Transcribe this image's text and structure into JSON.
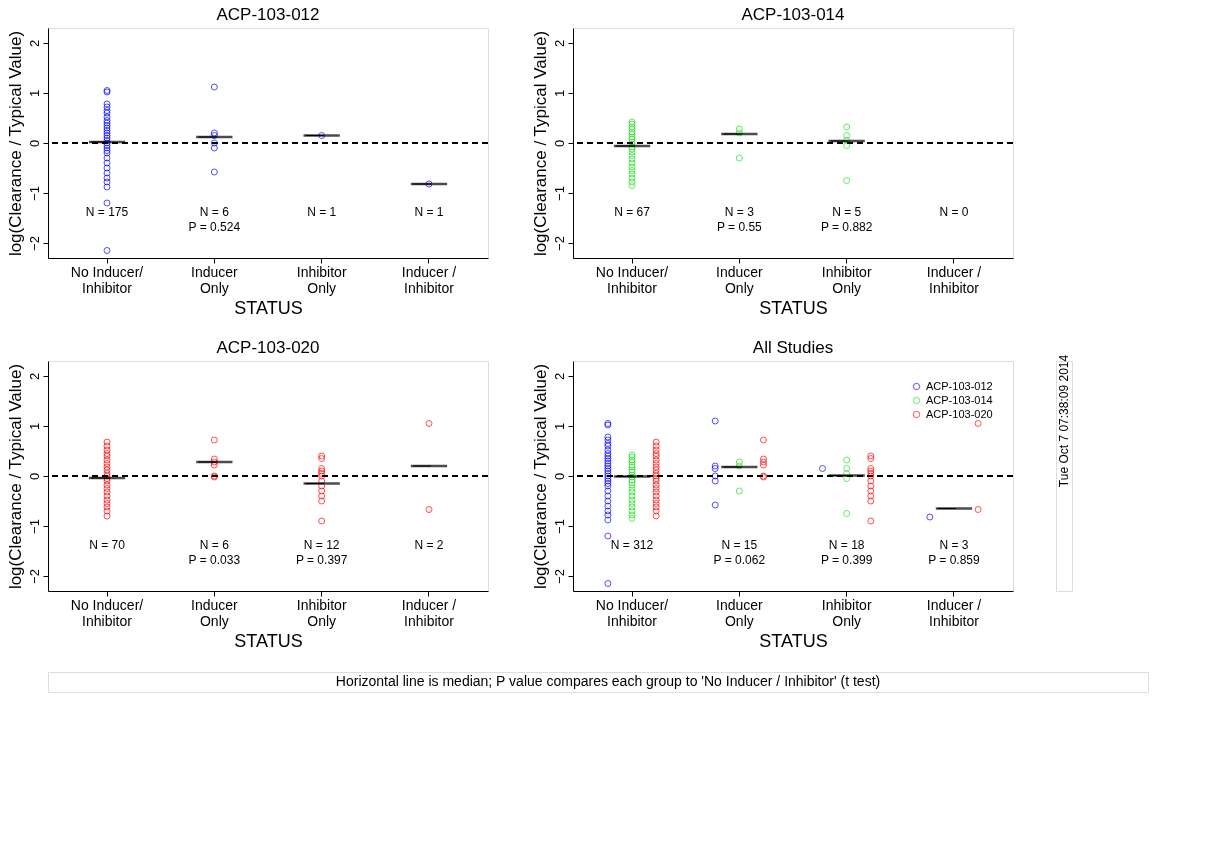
{
  "chart_data": [
    {
      "type": "scatter",
      "title": "ACP-103-012",
      "xlabel": "STATUS",
      "ylabel": "log(Clearance / Typical Value)",
      "categories": [
        "No Inducer/\nInhibitor",
        "Inducer\nOnly",
        "Inhibitor\nOnly",
        "Inducer /\nInhibitor"
      ],
      "ylim": [
        -2.3,
        2.3
      ],
      "yticks": [
        -2,
        -1,
        0,
        1,
        2
      ],
      "grid": false,
      "marker": "circle",
      "series": [
        {
          "color": "#0000ff",
          "x": [
            "No Inducer/\nInhibitor",
            "No Inducer/\nInhibitor",
            "No Inducer/\nInhibitor",
            "No Inducer/\nInhibitor",
            "No Inducer/\nInhibitor",
            "No Inducer/\nInhibitor",
            "No Inducer/\nInhibitor",
            "No Inducer/\nInhibitor",
            "No Inducer/\nInhibitor",
            "No Inducer/\nInhibitor",
            "No Inducer/\nInhibitor",
            "No Inducer/\nInhibitor",
            "No Inducer/\nInhibitor",
            "No Inducer/\nInhibitor",
            "No Inducer/\nInhibitor",
            "No Inducer/\nInhibitor",
            "No Inducer/\nInhibitor",
            "No Inducer/\nInhibitor",
            "No Inducer/\nInhibitor",
            "No Inducer/\nInhibitor",
            "No Inducer/\nInhibitor",
            "No Inducer/\nInhibitor",
            "No Inducer/\nInhibitor",
            "No Inducer/\nInhibitor",
            "No Inducer/\nInhibitor",
            "No Inducer/\nInhibitor",
            "No Inducer/\nInhibitor",
            "No Inducer/\nInhibitor",
            "No Inducer/\nInhibitor",
            "No Inducer/\nInhibitor",
            "Inducer\nOnly",
            "Inducer\nOnly",
            "Inducer\nOnly",
            "Inducer\nOnly",
            "Inducer\nOnly",
            "Inducer\nOnly",
            "Inhibitor\nOnly",
            "Inducer /\nInhibitor"
          ],
          "values": [
            1.05,
            1.02,
            0.78,
            0.72,
            0.65,
            0.6,
            0.52,
            0.45,
            0.4,
            0.35,
            0.3,
            0.25,
            0.2,
            0.15,
            0.1,
            0.05,
            0,
            -0.05,
            -0.1,
            -0.15,
            -0.2,
            -0.3,
            -0.4,
            -0.5,
            -0.6,
            -0.7,
            -0.78,
            -0.88,
            -1.2,
            -2.15,
            1.12,
            0.2,
            0.15,
            0,
            -0.1,
            -0.58,
            0.15,
            -0.82
          ]
        },
        {
          "type": "box",
          "color": "#000000",
          "x": [
            "No Inducer/\nInhibitor",
            "Inducer\nOnly",
            "Inhibitor\nOnly",
            "Inducer /\nInhibitor"
          ],
          "boxes": [
            {
              "low": 0.02,
              "q1": 0.02,
              "median": 0.02,
              "q3": 0.02,
              "high": 0.02
            },
            {
              "low": 0.12,
              "q1": 0.12,
              "median": 0.12,
              "q3": 0.12,
              "high": 0.12
            },
            {
              "low": 0.15,
              "q1": 0.15,
              "median": 0.15,
              "q3": 0.15,
              "high": 0.15
            },
            {
              "low": -0.82,
              "q1": -0.82,
              "median": -0.82,
              "q3": -0.82,
              "high": -0.82
            }
          ]
        }
      ],
      "ref_lines": [
        {
          "axis": "y",
          "value": 0,
          "color": "#000000",
          "line_style": "dashed"
        }
      ],
      "annotations": [
        "N = 175",
        "N = 6\nP = 0.524",
        "N = 1",
        "N = 1"
      ]
    },
    {
      "type": "scatter",
      "title": "ACP-103-014",
      "xlabel": "STATUS",
      "ylabel": "log(Clearance / Typical Value)",
      "categories": [
        "No Inducer/\nInhibitor",
        "Inducer\nOnly",
        "Inhibitor\nOnly",
        "Inducer /\nInhibitor"
      ],
      "ylim": [
        -2.3,
        2.3
      ],
      "yticks": [
        -2,
        -1,
        0,
        1,
        2
      ],
      "grid": false,
      "marker": "circle",
      "series": [
        {
          "color": "#22dd22",
          "x": [
            "No Inducer/\nInhibitor",
            "No Inducer/\nInhibitor",
            "No Inducer/\nInhibitor",
            "No Inducer/\nInhibitor",
            "No Inducer/\nInhibitor",
            "No Inducer/\nInhibitor",
            "No Inducer/\nInhibitor",
            "No Inducer/\nInhibitor",
            "No Inducer/\nInhibitor",
            "No Inducer/\nInhibitor",
            "No Inducer/\nInhibitor",
            "No Inducer/\nInhibitor",
            "No Inducer/\nInhibitor",
            "No Inducer/\nInhibitor",
            "No Inducer/\nInhibitor",
            "No Inducer/\nInhibitor",
            "No Inducer/\nInhibitor",
            "No Inducer/\nInhibitor",
            "No Inducer/\nInhibitor",
            "No Inducer/\nInhibitor",
            "No Inducer/\nInhibitor",
            "No Inducer/\nInhibitor",
            "Inducer\nOnly",
            "Inducer\nOnly",
            "Inducer\nOnly",
            "Inhibitor\nOnly",
            "Inhibitor\nOnly",
            "Inhibitor\nOnly",
            "Inhibitor\nOnly",
            "Inhibitor\nOnly"
          ],
          "values": [
            0.42,
            0.38,
            0.32,
            0.28,
            0.22,
            0.18,
            0.12,
            0.08,
            0.02,
            -0.02,
            -0.08,
            -0.12,
            -0.18,
            -0.25,
            -0.32,
            -0.4,
            -0.48,
            -0.55,
            -0.62,
            -0.7,
            -0.78,
            -0.85,
            0.28,
            0.2,
            -0.3,
            0.32,
            0.15,
            0.05,
            -0.05,
            -0.75
          ]
        },
        {
          "type": "box",
          "color": "#000000",
          "x": [
            "No Inducer/\nInhibitor",
            "Inducer\nOnly",
            "Inhibitor\nOnly"
          ],
          "boxes": [
            {
              "low": -0.06,
              "q1": -0.06,
              "median": -0.06,
              "q3": -0.06,
              "high": -0.06
            },
            {
              "low": 0.18,
              "q1": 0.18,
              "median": 0.18,
              "q3": 0.18,
              "high": 0.18
            },
            {
              "low": 0.04,
              "q1": 0.04,
              "median": 0.04,
              "q3": 0.04,
              "high": 0.04
            }
          ]
        }
      ],
      "ref_lines": [
        {
          "axis": "y",
          "value": 0,
          "color": "#000000",
          "line_style": "dashed"
        }
      ],
      "annotations": [
        "N = 67",
        "N = 3\nP = 0.55",
        "N = 5\nP = 0.882",
        "N = 0"
      ]
    },
    {
      "type": "scatter",
      "title": "ACP-103-020",
      "xlabel": "STATUS",
      "ylabel": "log(Clearance / Typical Value)",
      "categories": [
        "No Inducer/\nInhibitor",
        "Inducer\nOnly",
        "Inhibitor\nOnly",
        "Inducer /\nInhibitor"
      ],
      "ylim": [
        -2.3,
        2.3
      ],
      "yticks": [
        -2,
        -1,
        0,
        1,
        2
      ],
      "grid": false,
      "marker": "circle",
      "series": [
        {
          "color": "#ff0000",
          "x": [
            "No Inducer/\nInhibitor",
            "No Inducer/\nInhibitor",
            "No Inducer/\nInhibitor",
            "No Inducer/\nInhibitor",
            "No Inducer/\nInhibitor",
            "No Inducer/\nInhibitor",
            "No Inducer/\nInhibitor",
            "No Inducer/\nInhibitor",
            "No Inducer/\nInhibitor",
            "No Inducer/\nInhibitor",
            "No Inducer/\nInhibitor",
            "No Inducer/\nInhibitor",
            "No Inducer/\nInhibitor",
            "No Inducer/\nInhibitor",
            "No Inducer/\nInhibitor",
            "No Inducer/\nInhibitor",
            "No Inducer/\nInhibitor",
            "No Inducer/\nInhibitor",
            "No Inducer/\nInhibitor",
            "No Inducer/\nInhibitor",
            "No Inducer/\nInhibitor",
            "No Inducer/\nInhibitor",
            "Inducer\nOnly",
            "Inducer\nOnly",
            "Inducer\nOnly",
            "Inducer\nOnly",
            "Inducer\nOnly",
            "Inducer\nOnly",
            "Inhibitor\nOnly",
            "Inhibitor\nOnly",
            "Inhibitor\nOnly",
            "Inhibitor\nOnly",
            "Inhibitor\nOnly",
            "Inhibitor\nOnly",
            "Inhibitor\nOnly",
            "Inhibitor\nOnly",
            "Inhibitor\nOnly",
            "Inhibitor\nOnly",
            "Inhibitor\nOnly",
            "Inhibitor\nOnly",
            "Inducer /\nInhibitor",
            "Inducer /\nInhibitor"
          ],
          "values": [
            0.68,
            0.6,
            0.52,
            0.45,
            0.4,
            0.32,
            0.25,
            0.18,
            0.12,
            0.05,
            0,
            -0.05,
            -0.1,
            -0.18,
            -0.25,
            -0.32,
            -0.4,
            -0.48,
            -0.55,
            -0.62,
            -0.7,
            -0.8,
            0.72,
            0.34,
            0.28,
            0.22,
            0,
            -0.02,
            0.4,
            0.35,
            0.15,
            0.1,
            0.05,
            0,
            -0.1,
            -0.2,
            -0.3,
            -0.4,
            -0.5,
            -0.9,
            1.05,
            -0.67
          ]
        },
        {
          "type": "box",
          "color": "#000000",
          "x": [
            "No Inducer/\nInhibitor",
            "Inducer\nOnly",
            "Inhibitor\nOnly",
            "Inducer /\nInhibitor"
          ],
          "boxes": [
            {
              "low": -0.04,
              "q1": -0.04,
              "median": -0.04,
              "q3": -0.04,
              "high": -0.04
            },
            {
              "low": 0.28,
              "q1": 0.28,
              "median": 0.28,
              "q3": 0.28,
              "high": 0.28
            },
            {
              "low": -0.15,
              "q1": -0.15,
              "median": -0.15,
              "q3": -0.15,
              "high": -0.15
            },
            {
              "low": 0.2,
              "q1": 0.2,
              "median": 0.2,
              "q3": 0.2,
              "high": 0.2
            }
          ]
        }
      ],
      "ref_lines": [
        {
          "axis": "y",
          "value": 0,
          "color": "#000000",
          "line_style": "dashed"
        }
      ],
      "annotations": [
        "N = 70",
        "N = 6\nP = 0.033",
        "N = 12\nP = 0.397",
        "N = 2"
      ]
    },
    {
      "type": "scatter",
      "title": "All Studies",
      "xlabel": "STATUS",
      "ylabel": "log(Clearance / Typical Value)",
      "categories": [
        "No Inducer/\nInhibitor",
        "Inducer\nOnly",
        "Inhibitor\nOnly",
        "Inducer /\nInhibitor"
      ],
      "ylim": [
        -2.3,
        2.3
      ],
      "yticks": [
        -2,
        -1,
        0,
        1,
        2
      ],
      "grid": false,
      "legend": "top right",
      "marker": "circle",
      "series": [
        {
          "name": "ACP-103-012",
          "color": "#0000ff",
          "x": [
            "No Inducer/\nInhibitor",
            "No Inducer/\nInhibitor",
            "No Inducer/\nInhibitor",
            "No Inducer/\nInhibitor",
            "No Inducer/\nInhibitor",
            "No Inducer/\nInhibitor",
            "No Inducer/\nInhibitor",
            "No Inducer/\nInhibitor",
            "No Inducer/\nInhibitor",
            "No Inducer/\nInhibitor",
            "No Inducer/\nInhibitor",
            "No Inducer/\nInhibitor",
            "No Inducer/\nInhibitor",
            "No Inducer/\nInhibitor",
            "No Inducer/\nInhibitor",
            "No Inducer/\nInhibitor",
            "No Inducer/\nInhibitor",
            "No Inducer/\nInhibitor",
            "No Inducer/\nInhibitor",
            "No Inducer/\nInhibitor",
            "No Inducer/\nInhibitor",
            "No Inducer/\nInhibitor",
            "No Inducer/\nInhibitor",
            "No Inducer/\nInhibitor",
            "No Inducer/\nInhibitor",
            "No Inducer/\nInhibitor",
            "No Inducer/\nInhibitor",
            "No Inducer/\nInhibitor",
            "No Inducer/\nInhibitor",
            "No Inducer/\nInhibitor",
            "Inducer\nOnly",
            "Inducer\nOnly",
            "Inducer\nOnly",
            "Inducer\nOnly",
            "Inducer\nOnly",
            "Inducer\nOnly",
            "Inhibitor\nOnly",
            "Inducer /\nInhibitor"
          ],
          "values": [
            1.05,
            1.02,
            0.78,
            0.72,
            0.65,
            0.6,
            0.52,
            0.45,
            0.4,
            0.35,
            0.3,
            0.25,
            0.2,
            0.15,
            0.1,
            0.05,
            0,
            -0.05,
            -0.1,
            -0.15,
            -0.2,
            -0.3,
            -0.4,
            -0.5,
            -0.6,
            -0.7,
            -0.78,
            -0.88,
            -1.2,
            -2.15,
            1.1,
            0.2,
            0.15,
            0,
            -0.1,
            -0.58,
            0.15,
            -0.82
          ]
        },
        {
          "name": "ACP-103-014",
          "color": "#22dd22",
          "x": [
            "No Inducer/\nInhibitor",
            "No Inducer/\nInhibitor",
            "No Inducer/\nInhibitor",
            "No Inducer/\nInhibitor",
            "No Inducer/\nInhibitor",
            "No Inducer/\nInhibitor",
            "No Inducer/\nInhibitor",
            "No Inducer/\nInhibitor",
            "No Inducer/\nInhibitor",
            "No Inducer/\nInhibitor",
            "No Inducer/\nInhibitor",
            "No Inducer/\nInhibitor",
            "No Inducer/\nInhibitor",
            "No Inducer/\nInhibitor",
            "No Inducer/\nInhibitor",
            "No Inducer/\nInhibitor",
            "No Inducer/\nInhibitor",
            "No Inducer/\nInhibitor",
            "No Inducer/\nInhibitor",
            "No Inducer/\nInhibitor",
            "No Inducer/\nInhibitor",
            "No Inducer/\nInhibitor",
            "Inducer\nOnly",
            "Inducer\nOnly",
            "Inducer\nOnly",
            "Inhibitor\nOnly",
            "Inhibitor\nOnly",
            "Inhibitor\nOnly",
            "Inhibitor\nOnly",
            "Inhibitor\nOnly"
          ],
          "values": [
            0.42,
            0.38,
            0.32,
            0.28,
            0.22,
            0.18,
            0.12,
            0.08,
            0.02,
            -0.02,
            -0.08,
            -0.12,
            -0.18,
            -0.25,
            -0.32,
            -0.4,
            -0.48,
            -0.55,
            -0.62,
            -0.7,
            -0.78,
            -0.85,
            0.28,
            0.2,
            -0.3,
            0.32,
            0.15,
            0.05,
            -0.05,
            -0.75
          ]
        },
        {
          "name": "ACP-103-020",
          "color": "#ff0000",
          "x": [
            "No Inducer/\nInhibitor",
            "No Inducer/\nInhibitor",
            "No Inducer/\nInhibitor",
            "No Inducer/\nInhibitor",
            "No Inducer/\nInhibitor",
            "No Inducer/\nInhibitor",
            "No Inducer/\nInhibitor",
            "No Inducer/\nInhibitor",
            "No Inducer/\nInhibitor",
            "No Inducer/\nInhibitor",
            "No Inducer/\nInhibitor",
            "No Inducer/\nInhibitor",
            "No Inducer/\nInhibitor",
            "No Inducer/\nInhibitor",
            "No Inducer/\nInhibitor",
            "No Inducer/\nInhibitor",
            "No Inducer/\nInhibitor",
            "No Inducer/\nInhibitor",
            "No Inducer/\nInhibitor",
            "No Inducer/\nInhibitor",
            "No Inducer/\nInhibitor",
            "No Inducer/\nInhibitor",
            "Inducer\nOnly",
            "Inducer\nOnly",
            "Inducer\nOnly",
            "Inducer\nOnly",
            "Inducer\nOnly",
            "Inducer\nOnly",
            "Inhibitor\nOnly",
            "Inhibitor\nOnly",
            "Inhibitor\nOnly",
            "Inhibitor\nOnly",
            "Inhibitor\nOnly",
            "Inhibitor\nOnly",
            "Inhibitor\nOnly",
            "Inhibitor\nOnly",
            "Inhibitor\nOnly",
            "Inhibitor\nOnly",
            "Inhibitor\nOnly",
            "Inhibitor\nOnly",
            "Inducer /\nInhibitor",
            "Inducer /\nInhibitor"
          ],
          "values": [
            0.68,
            0.6,
            0.52,
            0.45,
            0.4,
            0.32,
            0.25,
            0.18,
            0.12,
            0.05,
            0,
            -0.05,
            -0.1,
            -0.18,
            -0.25,
            -0.32,
            -0.4,
            -0.48,
            -0.55,
            -0.62,
            -0.7,
            -0.8,
            0.72,
            0.34,
            0.28,
            0.22,
            0,
            -0.02,
            0.4,
            0.35,
            0.15,
            0.1,
            0.05,
            0,
            -0.1,
            -0.2,
            -0.3,
            -0.4,
            -0.5,
            -0.9,
            1.05,
            -0.67
          ]
        },
        {
          "type": "box",
          "color": "#000000",
          "x": [
            "No Inducer/\nInhibitor",
            "Inducer\nOnly",
            "Inhibitor\nOnly",
            "Inducer /\nInhibitor"
          ],
          "boxes": [
            {
              "low": -0.01,
              "q1": -0.01,
              "median": -0.01,
              "q3": -0.01,
              "high": -0.01
            },
            {
              "low": 0.18,
              "q1": 0.18,
              "median": 0.18,
              "q3": 0.18,
              "high": 0.18
            },
            {
              "low": 0.01,
              "q1": 0.01,
              "median": 0.01,
              "q3": 0.01,
              "high": 0.01
            },
            {
              "low": -0.65,
              "q1": -0.65,
              "median": -0.65,
              "q3": -0.65,
              "high": -0.65
            }
          ]
        }
      ],
      "ref_lines": [
        {
          "axis": "y",
          "value": 0,
          "color": "#000000",
          "line_style": "dashed"
        }
      ],
      "annotations": [
        "Tue Oct  7 07:38:09 2014",
        "Horizontal line is median; P value compares each group to 'No Inducer / Inhibitor' (t test)",
        "N = 312",
        "N = 15\nP = 0.062",
        "N = 18\nP = 0.399",
        "N = 3\nP = 0.859"
      ]
    }
  ]
}
